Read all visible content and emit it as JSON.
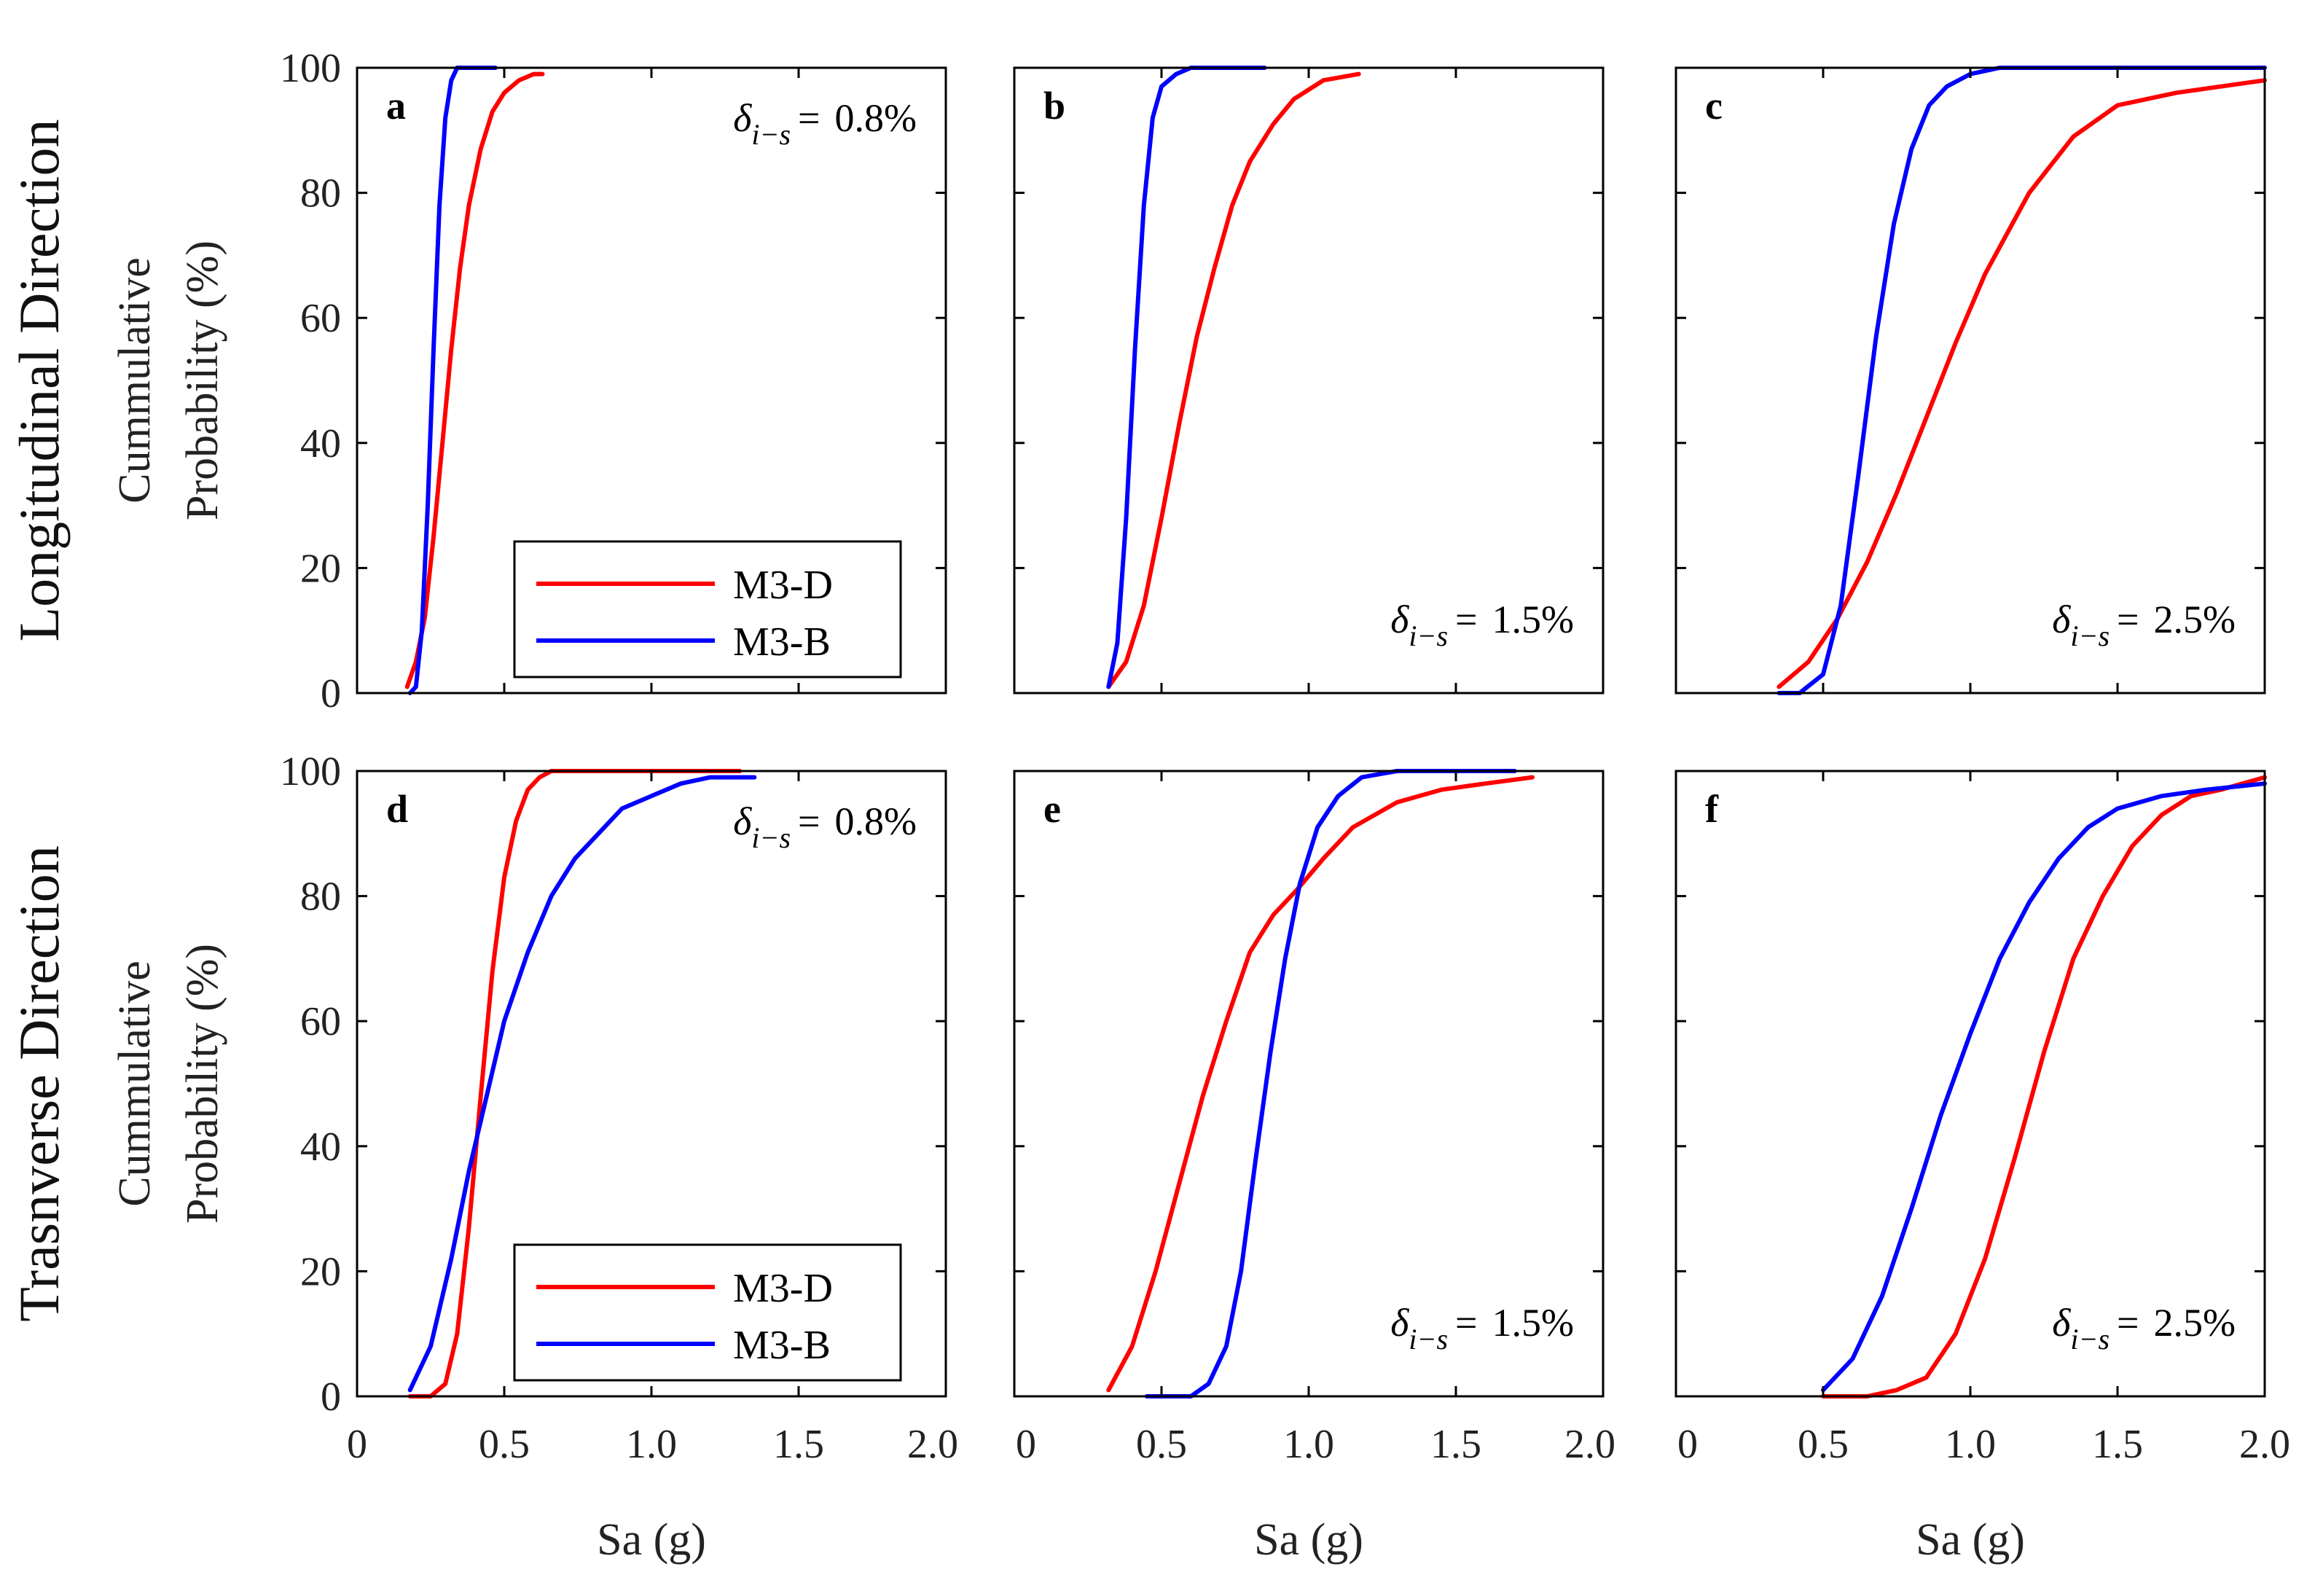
{
  "figure": {
    "row_labels": [
      "Longitudinal Direction",
      "Trasnverse Direction"
    ],
    "ylabel_line1": "Cummulative",
    "ylabel_line2": "Probability (%)",
    "xlabel": "Sa (g)",
    "annotation_symbol": "δ",
    "annotation_subscript": "i−s",
    "annotation_equals": "=",
    "colors": {
      "M3-D": "#ff0000",
      "M3-B": "#0000ff"
    },
    "x_tick_labels": [
      "0",
      "0.5",
      "1.0",
      "1.5",
      "2.0"
    ],
    "y_tick_labels": [
      "0",
      "20",
      "40",
      "60",
      "80",
      "100"
    ]
  },
  "chart_data": [
    {
      "panel": "a",
      "type": "line",
      "row": 0,
      "col": 0,
      "annotation_value": "0.8%",
      "annotation_pos": "top-right",
      "legend": [
        "M3-D",
        "M3-B"
      ],
      "xlim": [
        0,
        2.0
      ],
      "ylim": [
        0,
        100
      ],
      "series": [
        {
          "name": "M3-D",
          "x": [
            0.17,
            0.2,
            0.23,
            0.26,
            0.29,
            0.32,
            0.35,
            0.38,
            0.42,
            0.46,
            0.5,
            0.55,
            0.6,
            0.63
          ],
          "y": [
            1,
            5,
            12,
            25,
            40,
            55,
            68,
            78,
            87,
            93,
            96,
            98,
            99,
            99
          ]
        },
        {
          "name": "M3-B",
          "x": [
            0.18,
            0.2,
            0.22,
            0.24,
            0.26,
            0.28,
            0.3,
            0.32,
            0.34,
            0.37,
            0.4,
            0.47
          ],
          "y": [
            0,
            1,
            10,
            30,
            55,
            78,
            92,
            98,
            100,
            100,
            100,
            100
          ]
        }
      ]
    },
    {
      "panel": "b",
      "type": "line",
      "row": 0,
      "col": 1,
      "annotation_value": "1.5%",
      "annotation_pos": "bottom-right",
      "legend": [],
      "xlim": [
        0,
        2.0
      ],
      "ylim": [
        0,
        100
      ],
      "series": [
        {
          "name": "M3-D",
          "x": [
            0.32,
            0.38,
            0.44,
            0.5,
            0.56,
            0.62,
            0.68,
            0.74,
            0.8,
            0.88,
            0.95,
            1.05,
            1.17
          ],
          "y": [
            1,
            5,
            14,
            28,
            43,
            57,
            68,
            78,
            85,
            91,
            95,
            98,
            99
          ]
        },
        {
          "name": "M3-B",
          "x": [
            0.32,
            0.35,
            0.38,
            0.41,
            0.44,
            0.47,
            0.5,
            0.55,
            0.6,
            0.7,
            0.85
          ],
          "y": [
            1,
            8,
            28,
            55,
            78,
            92,
            97,
            99,
            100,
            100,
            100
          ]
        }
      ]
    },
    {
      "panel": "c",
      "type": "line",
      "row": 0,
      "col": 2,
      "annotation_value": "2.5%",
      "annotation_pos": "bottom-right",
      "legend": [],
      "xlim": [
        0,
        2.0
      ],
      "ylim": [
        0,
        100
      ],
      "series": [
        {
          "name": "M3-D",
          "x": [
            0.35,
            0.45,
            0.55,
            0.65,
            0.75,
            0.85,
            0.95,
            1.05,
            1.2,
            1.35,
            1.5,
            1.7,
            1.85,
            2.0
          ],
          "y": [
            1,
            5,
            12,
            21,
            32,
            44,
            56,
            67,
            80,
            89,
            94,
            96,
            97,
            98
          ]
        },
        {
          "name": "M3-B",
          "x": [
            0.35,
            0.42,
            0.5,
            0.56,
            0.62,
            0.68,
            0.74,
            0.8,
            0.86,
            0.92,
            1.0,
            1.1,
            1.3,
            1.6,
            2.0
          ],
          "y": [
            0,
            0,
            3,
            14,
            35,
            57,
            75,
            87,
            94,
            97,
            99,
            100,
            100,
            100,
            100
          ]
        }
      ]
    },
    {
      "panel": "d",
      "type": "line",
      "row": 1,
      "col": 0,
      "annotation_value": "0.8%",
      "annotation_pos": "top-right",
      "legend": [
        "M3-D",
        "M3-B"
      ],
      "xlim": [
        0,
        2.0
      ],
      "ylim": [
        0,
        100
      ],
      "series": [
        {
          "name": "M3-D",
          "x": [
            0.18,
            0.25,
            0.3,
            0.34,
            0.38,
            0.42,
            0.46,
            0.5,
            0.54,
            0.58,
            0.62,
            0.66,
            0.72,
            0.8,
            1.0,
            1.3
          ],
          "y": [
            0,
            0,
            2,
            10,
            27,
            48,
            68,
            83,
            92,
            97,
            99,
            100,
            100,
            100,
            100,
            100
          ]
        },
        {
          "name": "M3-B",
          "x": [
            0.18,
            0.25,
            0.32,
            0.38,
            0.44,
            0.5,
            0.58,
            0.66,
            0.74,
            0.82,
            0.9,
            1.0,
            1.1,
            1.2,
            1.35
          ],
          "y": [
            1,
            8,
            22,
            36,
            48,
            60,
            71,
            80,
            86,
            90,
            94,
            96,
            98,
            99,
            99
          ]
        }
      ]
    },
    {
      "panel": "e",
      "type": "line",
      "row": 1,
      "col": 1,
      "annotation_value": "1.5%",
      "annotation_pos": "bottom-right",
      "legend": [],
      "xlim": [
        0,
        2.0
      ],
      "ylim": [
        0,
        100
      ],
      "series": [
        {
          "name": "M3-D",
          "x": [
            0.32,
            0.4,
            0.48,
            0.56,
            0.64,
            0.72,
            0.8,
            0.88,
            0.96,
            1.05,
            1.15,
            1.3,
            1.45,
            1.6,
            1.76
          ],
          "y": [
            1,
            8,
            20,
            34,
            48,
            60,
            71,
            77,
            81,
            86,
            91,
            95,
            97,
            98,
            99
          ]
        },
        {
          "name": "M3-B",
          "x": [
            0.45,
            0.6,
            0.66,
            0.72,
            0.77,
            0.82,
            0.87,
            0.92,
            0.97,
            1.03,
            1.1,
            1.18,
            1.3,
            1.5,
            1.7
          ],
          "y": [
            0,
            0,
            2,
            8,
            20,
            38,
            55,
            70,
            82,
            91,
            96,
            99,
            100,
            100,
            100
          ]
        }
      ]
    },
    {
      "panel": "f",
      "type": "line",
      "row": 1,
      "col": 2,
      "annotation_value": "2.5%",
      "annotation_pos": "bottom-right",
      "legend": [],
      "xlim": [
        0,
        2.0
      ],
      "ylim": [
        0,
        100
      ],
      "series": [
        {
          "name": "M3-D",
          "x": [
            0.5,
            0.65,
            0.75,
            0.85,
            0.95,
            1.05,
            1.15,
            1.25,
            1.35,
            1.45,
            1.55,
            1.65,
            1.75,
            1.85,
            2.0
          ],
          "y": [
            0,
            0,
            1,
            3,
            10,
            22,
            38,
            55,
            70,
            80,
            88,
            93,
            96,
            97,
            99
          ]
        },
        {
          "name": "M3-B",
          "x": [
            0.5,
            0.6,
            0.7,
            0.8,
            0.9,
            1.0,
            1.1,
            1.2,
            1.3,
            1.4,
            1.5,
            1.65,
            1.8,
            2.0
          ],
          "y": [
            1,
            6,
            16,
            30,
            45,
            58,
            70,
            79,
            86,
            91,
            94,
            96,
            97,
            98
          ]
        }
      ]
    }
  ]
}
